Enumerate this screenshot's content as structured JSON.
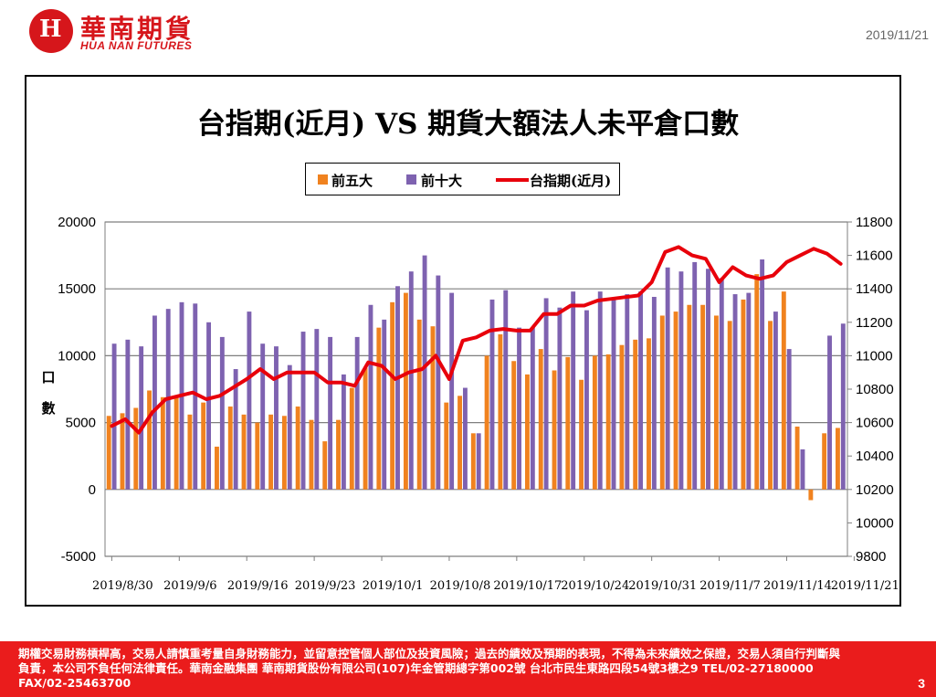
{
  "header": {
    "logo_cn": "華南期貨",
    "logo_en": "HUA NAN FUTURES",
    "logo_icon": "hua-nan-logo-icon",
    "date": "2019/11/21"
  },
  "footer": {
    "disclaimer": "期權交易財務槓桿高，交易人請慎重考量自身財務能力，並留意控管個人部位及投資風險；過去的績效及預期的表現，不得為未來績效之保證，交易人須自行判斷與負責，本公司不負任何法律責任。華南金融集團 華南期貨股份有限公司(107)年金管期總字第002號 台北市民生東路四段54號3樓之9 TEL/02-27180000 FAX/02-25463700",
    "page_number": "3"
  },
  "colors": {
    "top5": "#f0821f",
    "top10": "#7e62b0",
    "index": "#e8000b",
    "brand": "#d6161b"
  },
  "chart_data": {
    "type": "bar",
    "title": "台指期(近月) VS 期貨大額法人未平倉口數",
    "ylabel": "口數",
    "ylim": [
      -5000,
      20000
    ],
    "y2lim": [
      9800,
      11800
    ],
    "yticks": [
      -5000,
      0,
      5000,
      10000,
      15000,
      20000
    ],
    "y2ticks": [
      9800,
      10000,
      10200,
      10400,
      10600,
      10800,
      11000,
      11200,
      11400,
      11600,
      11800
    ],
    "grid": true,
    "legend_position": "top",
    "x_tick_labels": [
      "2019/8/30",
      "2019/9/6",
      "2019/9/16",
      "2019/9/23",
      "2019/10/1",
      "2019/10/8",
      "2019/10/17",
      "2019/10/24",
      "2019/10/31",
      "2019/11/7",
      "2019/11/14",
      "2019/11/21"
    ],
    "x_tick_index": [
      0,
      5,
      10,
      15,
      20,
      25,
      30,
      35,
      40,
      45,
      50,
      55
    ],
    "series": [
      {
        "name": "前五大",
        "type": "bar",
        "axis": "left",
        "values": [
          5500,
          5700,
          6100,
          7400,
          6900,
          6900,
          5600,
          6500,
          3200,
          6200,
          5600,
          5000,
          5600,
          5500,
          6200,
          5200,
          3600,
          5200,
          7600,
          9100,
          12100,
          14000,
          14700,
          12700,
          12200,
          6500,
          7000,
          4200,
          10000,
          11600,
          9600,
          8600,
          10500,
          8900,
          9900,
          8200,
          10000,
          10100,
          10800,
          11200,
          11300,
          13000,
          13300,
          13800,
          13800,
          13000,
          12600,
          14200,
          16100,
          12600,
          14800,
          4700,
          -800,
          4200,
          4600
        ]
      },
      {
        "name": "前十大",
        "type": "bar",
        "axis": "left",
        "values": [
          10900,
          11200,
          10700,
          13000,
          13500,
          14000,
          13900,
          12500,
          11400,
          9000,
          13300,
          10900,
          10700,
          9300,
          11800,
          12000,
          11400,
          8600,
          11400,
          13800,
          12700,
          15200,
          16300,
          17500,
          16000,
          14700,
          7600,
          4200,
          14200,
          14900,
          12100,
          12100,
          14300,
          13600,
          14800,
          13400,
          14800,
          14300,
          14600,
          14800,
          14400,
          16600,
          16300,
          17000,
          16500,
          15800,
          14600,
          14700,
          17200,
          13300,
          10500,
          3000,
          0,
          11500,
          12400
        ]
      },
      {
        "name": "台指期(近月)",
        "type": "line",
        "axis": "right",
        "values": [
          10580,
          10620,
          10540,
          10660,
          10740,
          10760,
          10780,
          10740,
          10760,
          10810,
          10860,
          10920,
          10860,
          10900,
          10900,
          10900,
          10840,
          10840,
          10820,
          10960,
          10940,
          10860,
          10900,
          10920,
          11000,
          10860,
          11090,
          11110,
          11150,
          11160,
          11150,
          11150,
          11250,
          11250,
          11300,
          11300,
          11330,
          11340,
          11350,
          11360,
          11440,
          11620,
          11650,
          11600,
          11580,
          11440,
          11530,
          11480,
          11460,
          11480,
          11560,
          11600,
          11640,
          11610,
          11550
        ]
      }
    ]
  }
}
